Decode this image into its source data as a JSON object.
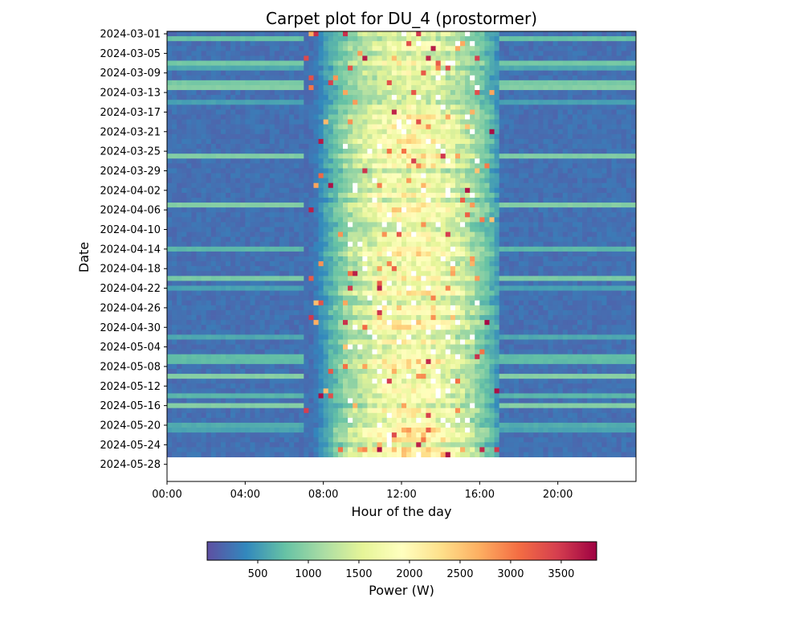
{
  "chart_data": {
    "type": "heatmap",
    "title": "Carpet plot for DU_4 (prostormer)",
    "xlabel": "Hour of the day",
    "ylabel": "Date",
    "x_ticks": [
      "00:00",
      "04:00",
      "08:00",
      "12:00",
      "16:00",
      "20:00"
    ],
    "x_tick_hours": [
      0,
      4,
      8,
      12,
      16,
      20
    ],
    "x_range_hours": [
      0,
      24
    ],
    "y_ticks": [
      "2024-03-01",
      "2024-03-05",
      "2024-03-09",
      "2024-03-13",
      "2024-03-17",
      "2024-03-21",
      "2024-03-25",
      "2024-03-29",
      "2024-04-02",
      "2024-04-06",
      "2024-04-10",
      "2024-04-14",
      "2024-04-18",
      "2024-04-22",
      "2024-04-26",
      "2024-04-30",
      "2024-05-04",
      "2024-05-08",
      "2024-05-12",
      "2024-05-16",
      "2024-05-20",
      "2024-05-24",
      "2024-05-28"
    ],
    "date_range": [
      "2024-03-01",
      "2024-05-31"
    ],
    "data_end_date": "2024-05-26",
    "resolution_minutes": 15,
    "colorbar": {
      "label": "Power (W)",
      "ticks": [
        500,
        1000,
        1500,
        2000,
        2500,
        3000,
        3500
      ],
      "range": [
        0,
        3850
      ],
      "colormap": "Spectral_r"
    },
    "value_model": {
      "day_start_hour": 7,
      "peak_hour": 12.5,
      "day_end_hour": 17,
      "typical_peak_W": 2000,
      "max_W": 3800,
      "night_base_W": 150
    }
  }
}
